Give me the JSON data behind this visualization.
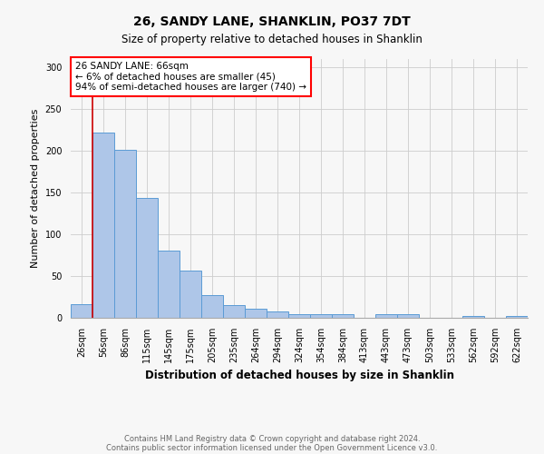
{
  "title1": "26, SANDY LANE, SHANKLIN, PO37 7DT",
  "title2": "Size of property relative to detached houses in Shanklin",
  "xlabel": "Distribution of detached houses by size in Shanklin",
  "ylabel": "Number of detached properties",
  "footnote1": "Contains HM Land Registry data © Crown copyright and database right 2024.",
  "footnote2": "Contains public sector information licensed under the Open Government Licence v3.0.",
  "annotation_title": "26 SANDY LANE: 66sqm",
  "annotation_line1": "← 6% of detached houses are smaller (45)",
  "annotation_line2": "94% of semi-detached houses are larger (740) →",
  "bar_values": [
    16,
    222,
    201,
    144,
    80,
    57,
    27,
    15,
    11,
    8,
    4,
    4,
    4,
    0,
    4,
    4,
    0,
    0,
    2,
    0,
    2
  ],
  "bar_labels": [
    "26sqm",
    "56sqm",
    "86sqm",
    "115sqm",
    "145sqm",
    "175sqm",
    "205sqm",
    "235sqm",
    "264sqm",
    "294sqm",
    "324sqm",
    "354sqm",
    "384sqm",
    "413sqm",
    "443sqm",
    "473sqm",
    "503sqm",
    "533sqm",
    "562sqm",
    "592sqm",
    "622sqm"
  ],
  "bar_color": "#aec6e8",
  "bar_edge_color": "#5b9bd5",
  "property_line_x": 1.0,
  "property_line_color": "#cc0000",
  "ylim": [
    0,
    310
  ],
  "yticks": [
    0,
    50,
    100,
    150,
    200,
    250,
    300
  ],
  "background_color": "#f7f7f7",
  "grid_color": "#cccccc",
  "title1_fontsize": 10,
  "title2_fontsize": 8.5,
  "ylabel_fontsize": 8,
  "xlabel_fontsize": 8.5,
  "tick_fontsize": 7,
  "annot_fontsize": 7.5,
  "footnote_fontsize": 6
}
